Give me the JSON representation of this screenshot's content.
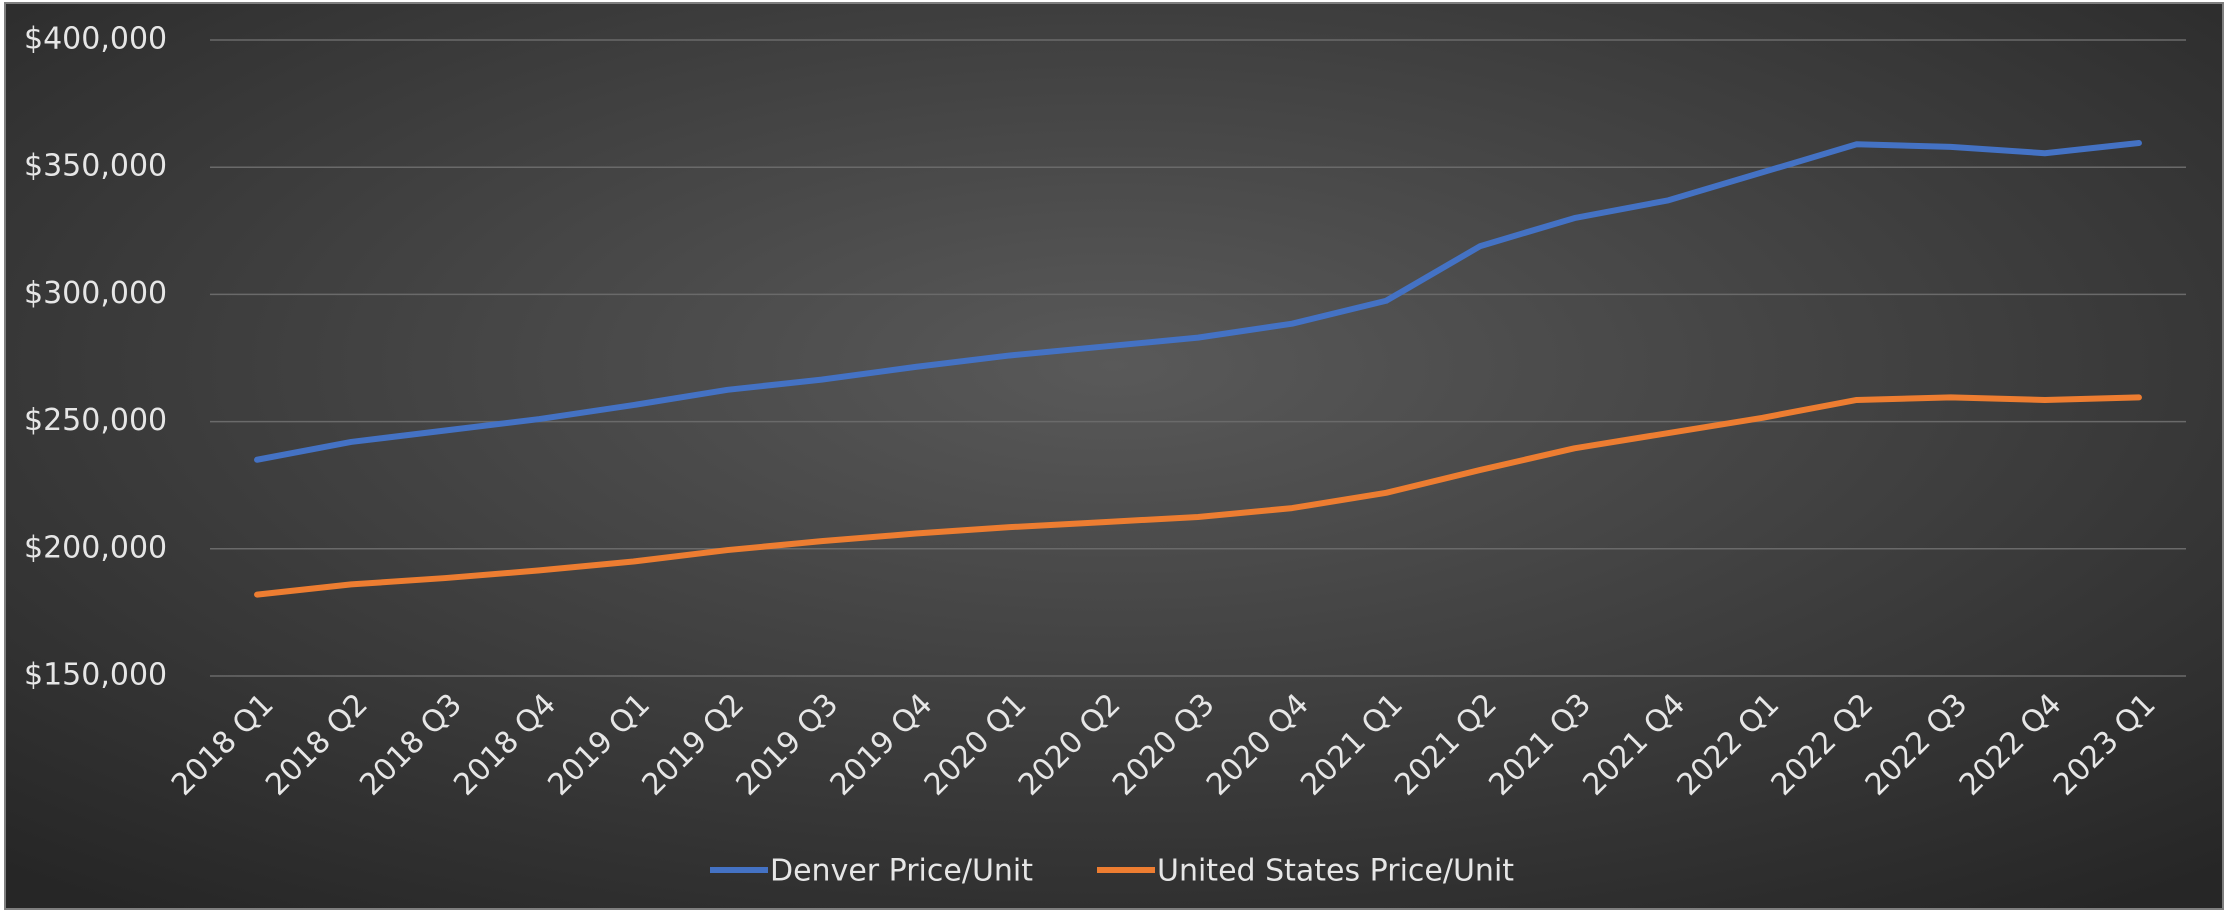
{
  "chart_data": {
    "type": "line",
    "categories": [
      "2018 Q1",
      "2018 Q2",
      "2018 Q3",
      "2018 Q4",
      "2019 Q1",
      "2019 Q2",
      "2019 Q3",
      "2019 Q4",
      "2020 Q1",
      "2020 Q2",
      "2020 Q3",
      "2020 Q4",
      "2021 Q1",
      "2021 Q2",
      "2021 Q3",
      "2021 Q4",
      "2022 Q1",
      "2022 Q2",
      "2022 Q3",
      "2022 Q4",
      "2023 Q1"
    ],
    "series": [
      {
        "name": "Denver Price/Unit",
        "color": "#4472c4",
        "values": [
          235000,
          242000,
          246500,
          251000,
          256500,
          262500,
          266500,
          271500,
          276000,
          279500,
          283000,
          288500,
          297500,
          319000,
          330000,
          337000,
          348000,
          359000,
          358000,
          355500,
          359500
        ]
      },
      {
        "name": "United States Price/Unit",
        "color": "#ed7d31",
        "values": [
          182000,
          186000,
          188500,
          191500,
          195000,
          199500,
          203000,
          206000,
          208500,
          210500,
          212500,
          216000,
          222000,
          231000,
          239500,
          245500,
          251500,
          258500,
          259500,
          258500,
          259500
        ]
      }
    ],
    "ylim": [
      150000,
      400000
    ],
    "yticks": [
      {
        "value": 150000,
        "label": "$150,000"
      },
      {
        "value": 200000,
        "label": "$200,000"
      },
      {
        "value": 250000,
        "label": "$250,000"
      },
      {
        "value": 300000,
        "label": "$300,000"
      },
      {
        "value": 350000,
        "label": "$350,000"
      },
      {
        "value": 400000,
        "label": "$400,000"
      }
    ],
    "grid": true,
    "legend": "bottom"
  }
}
